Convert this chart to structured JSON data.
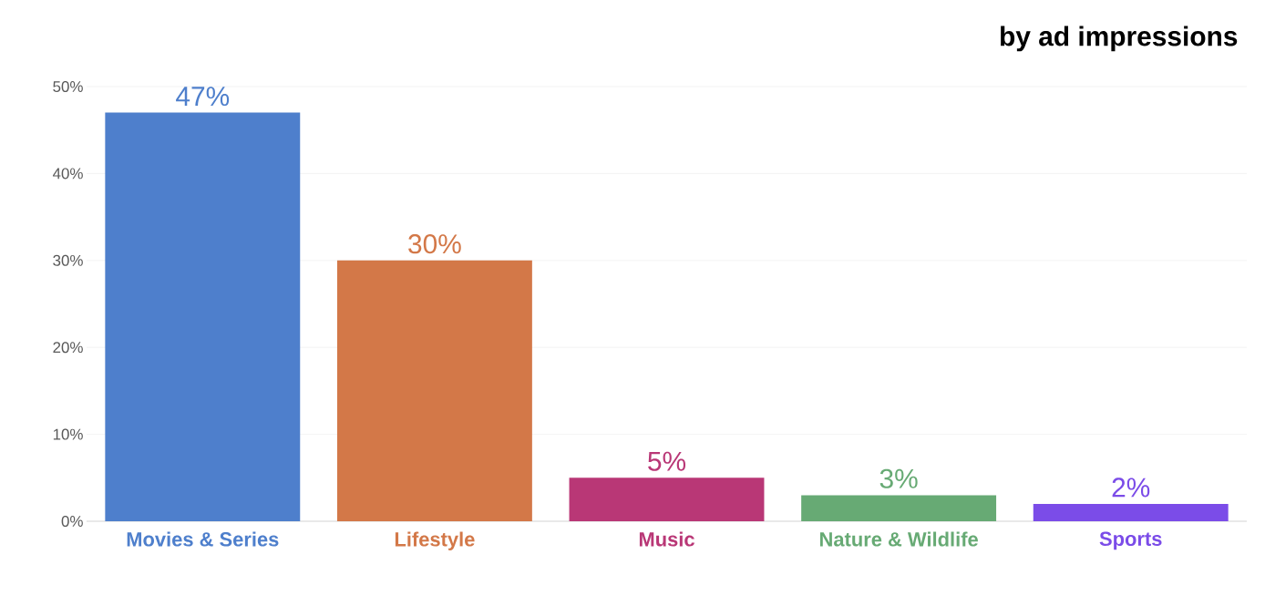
{
  "chart_data": {
    "type": "bar",
    "title": "by ad impressions",
    "categories": [
      "Movies & Series",
      "Lifestyle",
      "Music",
      "Nature & Wildlife",
      "Sports"
    ],
    "values": [
      47,
      30,
      5,
      3,
      2
    ],
    "colors": [
      "#4e7fcc",
      "#d37848",
      "#b93776",
      "#67aa74",
      "#7b4ce8"
    ],
    "value_labels": [
      "47%",
      "30%",
      "5%",
      "3%",
      "2%"
    ],
    "ylim": [
      0,
      50
    ],
    "yticks": [
      {
        "value": 0,
        "label": "0%"
      },
      {
        "value": 10,
        "label": "10%"
      },
      {
        "value": 20,
        "label": "20%"
      },
      {
        "value": 30,
        "label": "30%"
      },
      {
        "value": 40,
        "label": "40%"
      },
      {
        "value": 50,
        "label": "50%"
      }
    ],
    "grid": "y"
  }
}
